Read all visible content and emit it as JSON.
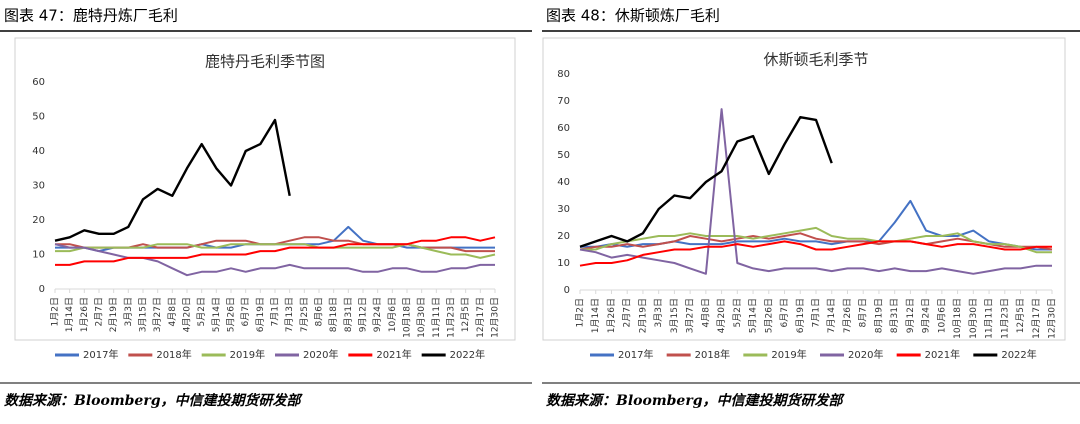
{
  "captions": [
    "图表 47：鹿特丹炼厂毛利",
    "图表 48：休斯顿炼厂毛利"
  ],
  "sources": [
    "数据来源：Bloomberg，中信建投期货研发部",
    "数据来源：Bloomberg，中信建投期货研发部"
  ],
  "chart_data": [
    {
      "type": "line",
      "title": "鹿特丹毛利季节图",
      "categories": [
        "1月2日",
        "1月14日",
        "1月26日",
        "2月7日",
        "2月19日",
        "3月3日",
        "3月15日",
        "3月27日",
        "4月8日",
        "4月20日",
        "5月2日",
        "5月14日",
        "5月26日",
        "6月7日",
        "6月19日",
        "7月1日",
        "7月13日",
        "7月25日",
        "8月6日",
        "8月18日",
        "8月31日",
        "9月12日",
        "9月24日",
        "10月6日",
        "10月18日",
        "10月30日",
        "11月11日",
        "11月23日",
        "12月5日",
        "12月17日",
        "12月30日"
      ],
      "ylim": [
        0,
        60
      ],
      "yticks": [
        0,
        10,
        20,
        30,
        40,
        50,
        60
      ],
      "series": [
        {
          "name": "2017年",
          "color": "#4472c4",
          "values": [
            12,
            12,
            12,
            11,
            12,
            12,
            12,
            12,
            12,
            12,
            13,
            12,
            12,
            13,
            13,
            13,
            13,
            13,
            13,
            14,
            18,
            14,
            13,
            13,
            12,
            12,
            12,
            12,
            12,
            12,
            12
          ]
        },
        {
          "name": "2018年",
          "color": "#c0504d",
          "values": [
            13,
            13,
            12,
            12,
            12,
            12,
            13,
            12,
            12,
            12,
            13,
            14,
            14,
            14,
            13,
            13,
            14,
            15,
            15,
            14,
            14,
            13,
            13,
            13,
            13,
            12,
            12,
            12,
            11,
            11,
            11
          ]
        },
        {
          "name": "2019年",
          "color": "#9bbb59",
          "values": [
            11,
            11,
            12,
            12,
            12,
            12,
            12,
            13,
            13,
            13,
            12,
            12,
            13,
            13,
            13,
            13,
            13,
            13,
            12,
            12,
            12,
            12,
            12,
            12,
            13,
            12,
            11,
            10,
            10,
            9,
            10
          ]
        },
        {
          "name": "2020年",
          "color": "#8064a2",
          "values": [
            13,
            12,
            12,
            11,
            10,
            9,
            9,
            8,
            6,
            4,
            5,
            5,
            6,
            5,
            6,
            6,
            7,
            6,
            6,
            6,
            6,
            5,
            5,
            6,
            6,
            5,
            5,
            6,
            6,
            7,
            7
          ]
        },
        {
          "name": "2021年",
          "color": "#ff0000",
          "values": [
            7,
            7,
            8,
            8,
            8,
            9,
            9,
            9,
            9,
            9,
            10,
            10,
            10,
            10,
            11,
            11,
            12,
            12,
            12,
            12,
            13,
            13,
            13,
            13,
            13,
            14,
            14,
            15,
            15,
            14,
            15
          ]
        },
        {
          "name": "2022年",
          "color": "#000000",
          "values": [
            14,
            15,
            17,
            16,
            16,
            18,
            26,
            29,
            27,
            35,
            42,
            35,
            30,
            40,
            42,
            49,
            27,
            null,
            null,
            null,
            null,
            null,
            null,
            null,
            null,
            null,
            null,
            null,
            null,
            null,
            null
          ]
        }
      ]
    },
    {
      "type": "line",
      "title": "休斯顿毛利季节",
      "categories": [
        "1月2日",
        "1月14日",
        "1月26日",
        "2月7日",
        "2月19日",
        "3月3日",
        "3月15日",
        "3月27日",
        "4月8日",
        "4月20日",
        "5月2日",
        "5月14日",
        "5月26日",
        "6月7日",
        "6月19日",
        "7月1日",
        "7月14日",
        "7月26日",
        "8月7日",
        "8月19日",
        "8月31日",
        "9月12日",
        "9月24日",
        "10月6日",
        "10月18日",
        "10月30日",
        "11月11日",
        "11月23日",
        "12月5日",
        "12月17日",
        "12月30日"
      ],
      "ylim": [
        0,
        80
      ],
      "yticks": [
        0,
        10,
        20,
        30,
        40,
        50,
        60,
        70,
        80
      ],
      "series": [
        {
          "name": "2017年",
          "color": "#4472c4",
          "values": [
            16,
            16,
            17,
            16,
            17,
            17,
            18,
            17,
            17,
            17,
            18,
            18,
            18,
            19,
            18,
            18,
            17,
            18,
            18,
            18,
            25,
            33,
            22,
            20,
            20,
            22,
            18,
            17,
            16,
            15,
            15
          ]
        },
        {
          "name": "2018年",
          "color": "#c0504d",
          "values": [
            15,
            16,
            16,
            17,
            16,
            17,
            18,
            20,
            19,
            18,
            19,
            20,
            19,
            20,
            21,
            19,
            18,
            18,
            18,
            17,
            18,
            18,
            17,
            18,
            19,
            18,
            17,
            16,
            16,
            16,
            15
          ]
        },
        {
          "name": "2019年",
          "color": "#9bbb59",
          "values": [
            15,
            15,
            17,
            18,
            19,
            20,
            20,
            21,
            20,
            20,
            20,
            19,
            20,
            21,
            22,
            23,
            20,
            19,
            19,
            18,
            18,
            19,
            20,
            20,
            21,
            18,
            17,
            17,
            16,
            14,
            14
          ]
        },
        {
          "name": "2020年",
          "color": "#8064a2",
          "values": [
            15,
            14,
            12,
            13,
            12,
            11,
            10,
            8,
            6,
            67,
            10,
            8,
            7,
            8,
            8,
            8,
            7,
            8,
            8,
            7,
            8,
            7,
            7,
            8,
            7,
            6,
            7,
            8,
            8,
            9,
            9
          ]
        },
        {
          "name": "2021年",
          "color": "#ff0000",
          "values": [
            9,
            10,
            10,
            11,
            13,
            14,
            15,
            15,
            16,
            16,
            17,
            16,
            17,
            18,
            17,
            15,
            15,
            16,
            17,
            18,
            18,
            18,
            17,
            16,
            17,
            17,
            16,
            15,
            15,
            16,
            16
          ]
        },
        {
          "name": "2022年",
          "color": "#000000",
          "values": [
            16,
            18,
            20,
            18,
            21,
            30,
            35,
            34,
            40,
            44,
            55,
            57,
            43,
            54,
            64,
            63,
            47,
            null,
            null,
            null,
            null,
            null,
            null,
            null,
            null,
            null,
            null,
            null,
            null,
            null,
            null
          ]
        }
      ]
    }
  ]
}
